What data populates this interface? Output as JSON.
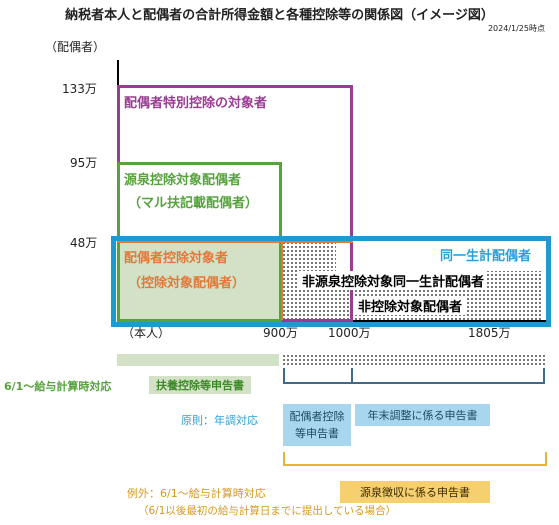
{
  "title": "納税者本人と配偶者の合計所得金額と各種控除等の関係図（イメージ図）",
  "date": "2024/1/25時点",
  "yaxis": {
    "label": "（配偶者）",
    "ticks": [
      "133万",
      "95万",
      "48万"
    ]
  },
  "xaxis": {
    "ticks": [
      "（本人）",
      "900万",
      "1000万",
      "1805万"
    ]
  },
  "regions": {
    "special": "配偶者特別控除の対象者",
    "withholding_line1": "源泉控除対象配偶者",
    "withholding_line2": "（マル扶記載配偶者）",
    "deduction_line1": "配偶者控除対象者",
    "deduction_line2": "（控除対象配偶者）",
    "same_household": "同一生計配偶者",
    "non_withholding_same": "非源泉控除対象同一生計配偶者",
    "non_deduction": "非控除対象配偶者"
  },
  "forms": {
    "june_note": "6/1～給与計算時対応",
    "dependent_form": "扶養控除等申告書",
    "principle_note": "原則：年調対応",
    "spouse_form_line1": "配偶者控除",
    "spouse_form_line2": "等申告書",
    "year_end_form": "年末調整に係る申告書",
    "exception_line1": "例外：6/1～給与計算時対応",
    "exception_line2": "（6/1以後最初の給与計算日までに提出している場合）",
    "withholding_form": "源泉徴収に係る申告書"
  },
  "colors": {
    "purple": "#9b3b93",
    "green": "#56a33e",
    "green_fill": "#d3e2c6",
    "orange": "#e2793a",
    "blue": "#1d9bd1",
    "blue_text": "#2aa0d6",
    "light_blue": "#a9d6ef",
    "navy": "#3f6a8c",
    "gold": "#e8b13a",
    "gold_fill": "#f6cf6f",
    "note_green": "#56a33e"
  }
}
